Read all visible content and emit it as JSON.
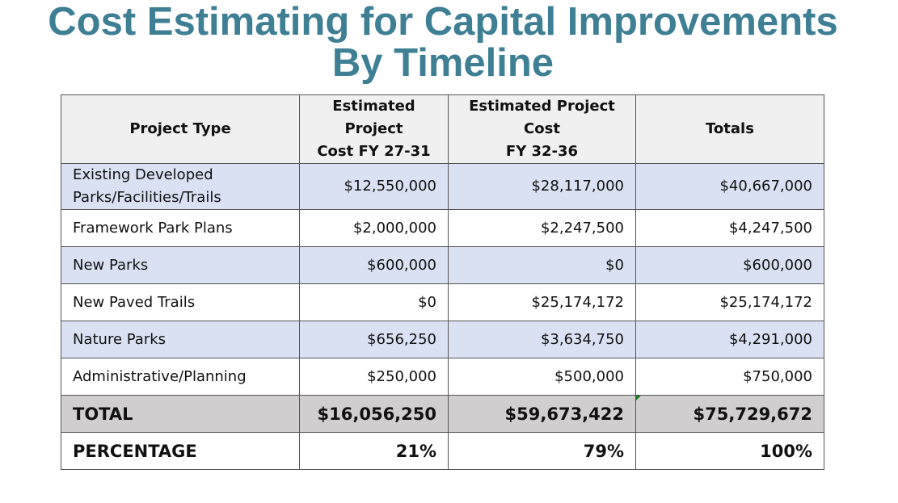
{
  "title": {
    "line1": "Cost Estimating for Capital Improvements",
    "line2": "By Timeline"
  },
  "table": {
    "headers": {
      "project_type": "Project Type",
      "fy27_line1": "Estimated Project",
      "fy27_line2": "Cost FY 27-31",
      "fy32_line1": "Estimated Project Cost",
      "fy32_line2": "FY 32-36",
      "totals": "Totals"
    },
    "rows": [
      {
        "name_line1": "Existing Developed",
        "name_line2": "Parks/Facilities/Trails",
        "fy27": "$12,550,000",
        "fy32": "$28,117,000",
        "total": "$40,667,000"
      },
      {
        "name": "Framework Park Plans",
        "fy27": "$2,000,000",
        "fy32": "$2,247,500",
        "total": "$4,247,500"
      },
      {
        "name": "New Parks",
        "fy27": "$600,000",
        "fy32": "$0",
        "total": "$600,000"
      },
      {
        "name": "New Paved Trails",
        "fy27": "$0",
        "fy32": "$25,174,172",
        "total": "$25,174,172"
      },
      {
        "name": "Nature Parks",
        "fy27": "$656,250",
        "fy32": "$3,634,750",
        "total": "$4,291,000"
      },
      {
        "name": "Administrative/Planning",
        "fy27": "$250,000",
        "fy32": "$500,000",
        "total": "$750,000"
      }
    ],
    "total_row": {
      "label": "TOTAL",
      "fy27": "$16,056,250",
      "fy32": "$59,673,422",
      "total": "$75,729,672"
    },
    "percentage_row": {
      "label": "PERCENTAGE",
      "fy27": "21%",
      "fy32": "79%",
      "total": "100%"
    }
  },
  "colors": {
    "title": "#3e7f94",
    "header_bg": "#f0f0f0",
    "shaded_row": "#dae1f2",
    "total_row": "#d0cece",
    "comment_marker": "#1e7d1e"
  }
}
